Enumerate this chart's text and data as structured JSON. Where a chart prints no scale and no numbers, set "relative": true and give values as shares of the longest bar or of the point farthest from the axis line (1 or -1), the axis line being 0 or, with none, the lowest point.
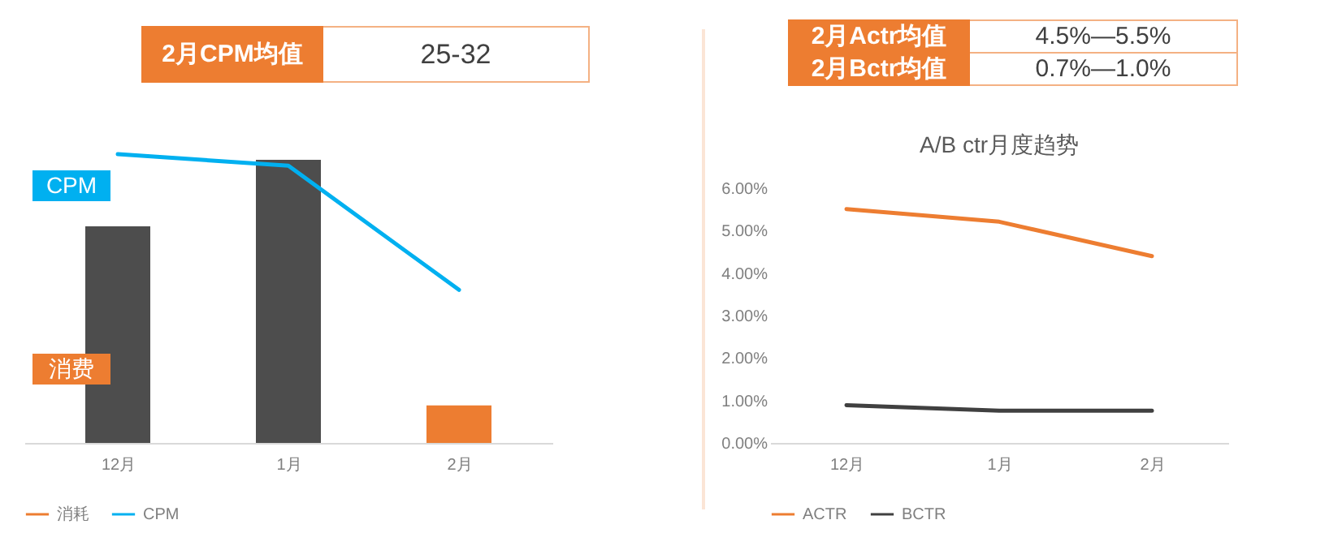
{
  "chart_data": [
    {
      "type": "bar",
      "relative": true,
      "categories": [
        "12月",
        "1月",
        "2月"
      ],
      "legend": "bottom",
      "annotations": [
        "2月CPM均值",
        "25-32",
        "CPM",
        "消费"
      ],
      "series": [
        {
          "name": "消耗",
          "color": "#ed7d31",
          "colors": [
            "#4d4d4d",
            "#4d4d4d",
            "#ed7d31"
          ],
          "values": [
            0.75,
            0.98,
            0.13
          ]
        },
        {
          "name": "CPM",
          "type": "line",
          "color": "#00b0f0",
          "values": [
            1,
            0.96,
            0.53
          ]
        }
      ]
    },
    {
      "type": "line",
      "title": "A/B ctr月度趋势",
      "categories": [
        "12月",
        "1月",
        "2月"
      ],
      "legend": "bottom",
      "annotations": [
        "2月Actr均值",
        "4.5%—5.5%",
        "2月Bctr均值",
        "0.7%—1.0%"
      ],
      "ylim": [
        0,
        6
      ],
      "yticks": [
        {
          "value": 0,
          "label": "0.00%"
        },
        {
          "value": 1,
          "label": "1.00%"
        },
        {
          "value": 2,
          "label": "2.00%"
        },
        {
          "value": 3,
          "label": "3.00%"
        },
        {
          "value": 4,
          "label": "4.00%"
        },
        {
          "value": 5,
          "label": "5.00%"
        },
        {
          "value": 6,
          "label": "6.00%"
        }
      ],
      "series": [
        {
          "name": "ACTR",
          "color": "#ed7d31",
          "values": [
            5.51,
            5.21,
            4.4
          ]
        },
        {
          "name": "BCTR",
          "color": "#404040",
          "values": [
            0.89,
            0.76,
            0.76
          ]
        }
      ]
    }
  ]
}
